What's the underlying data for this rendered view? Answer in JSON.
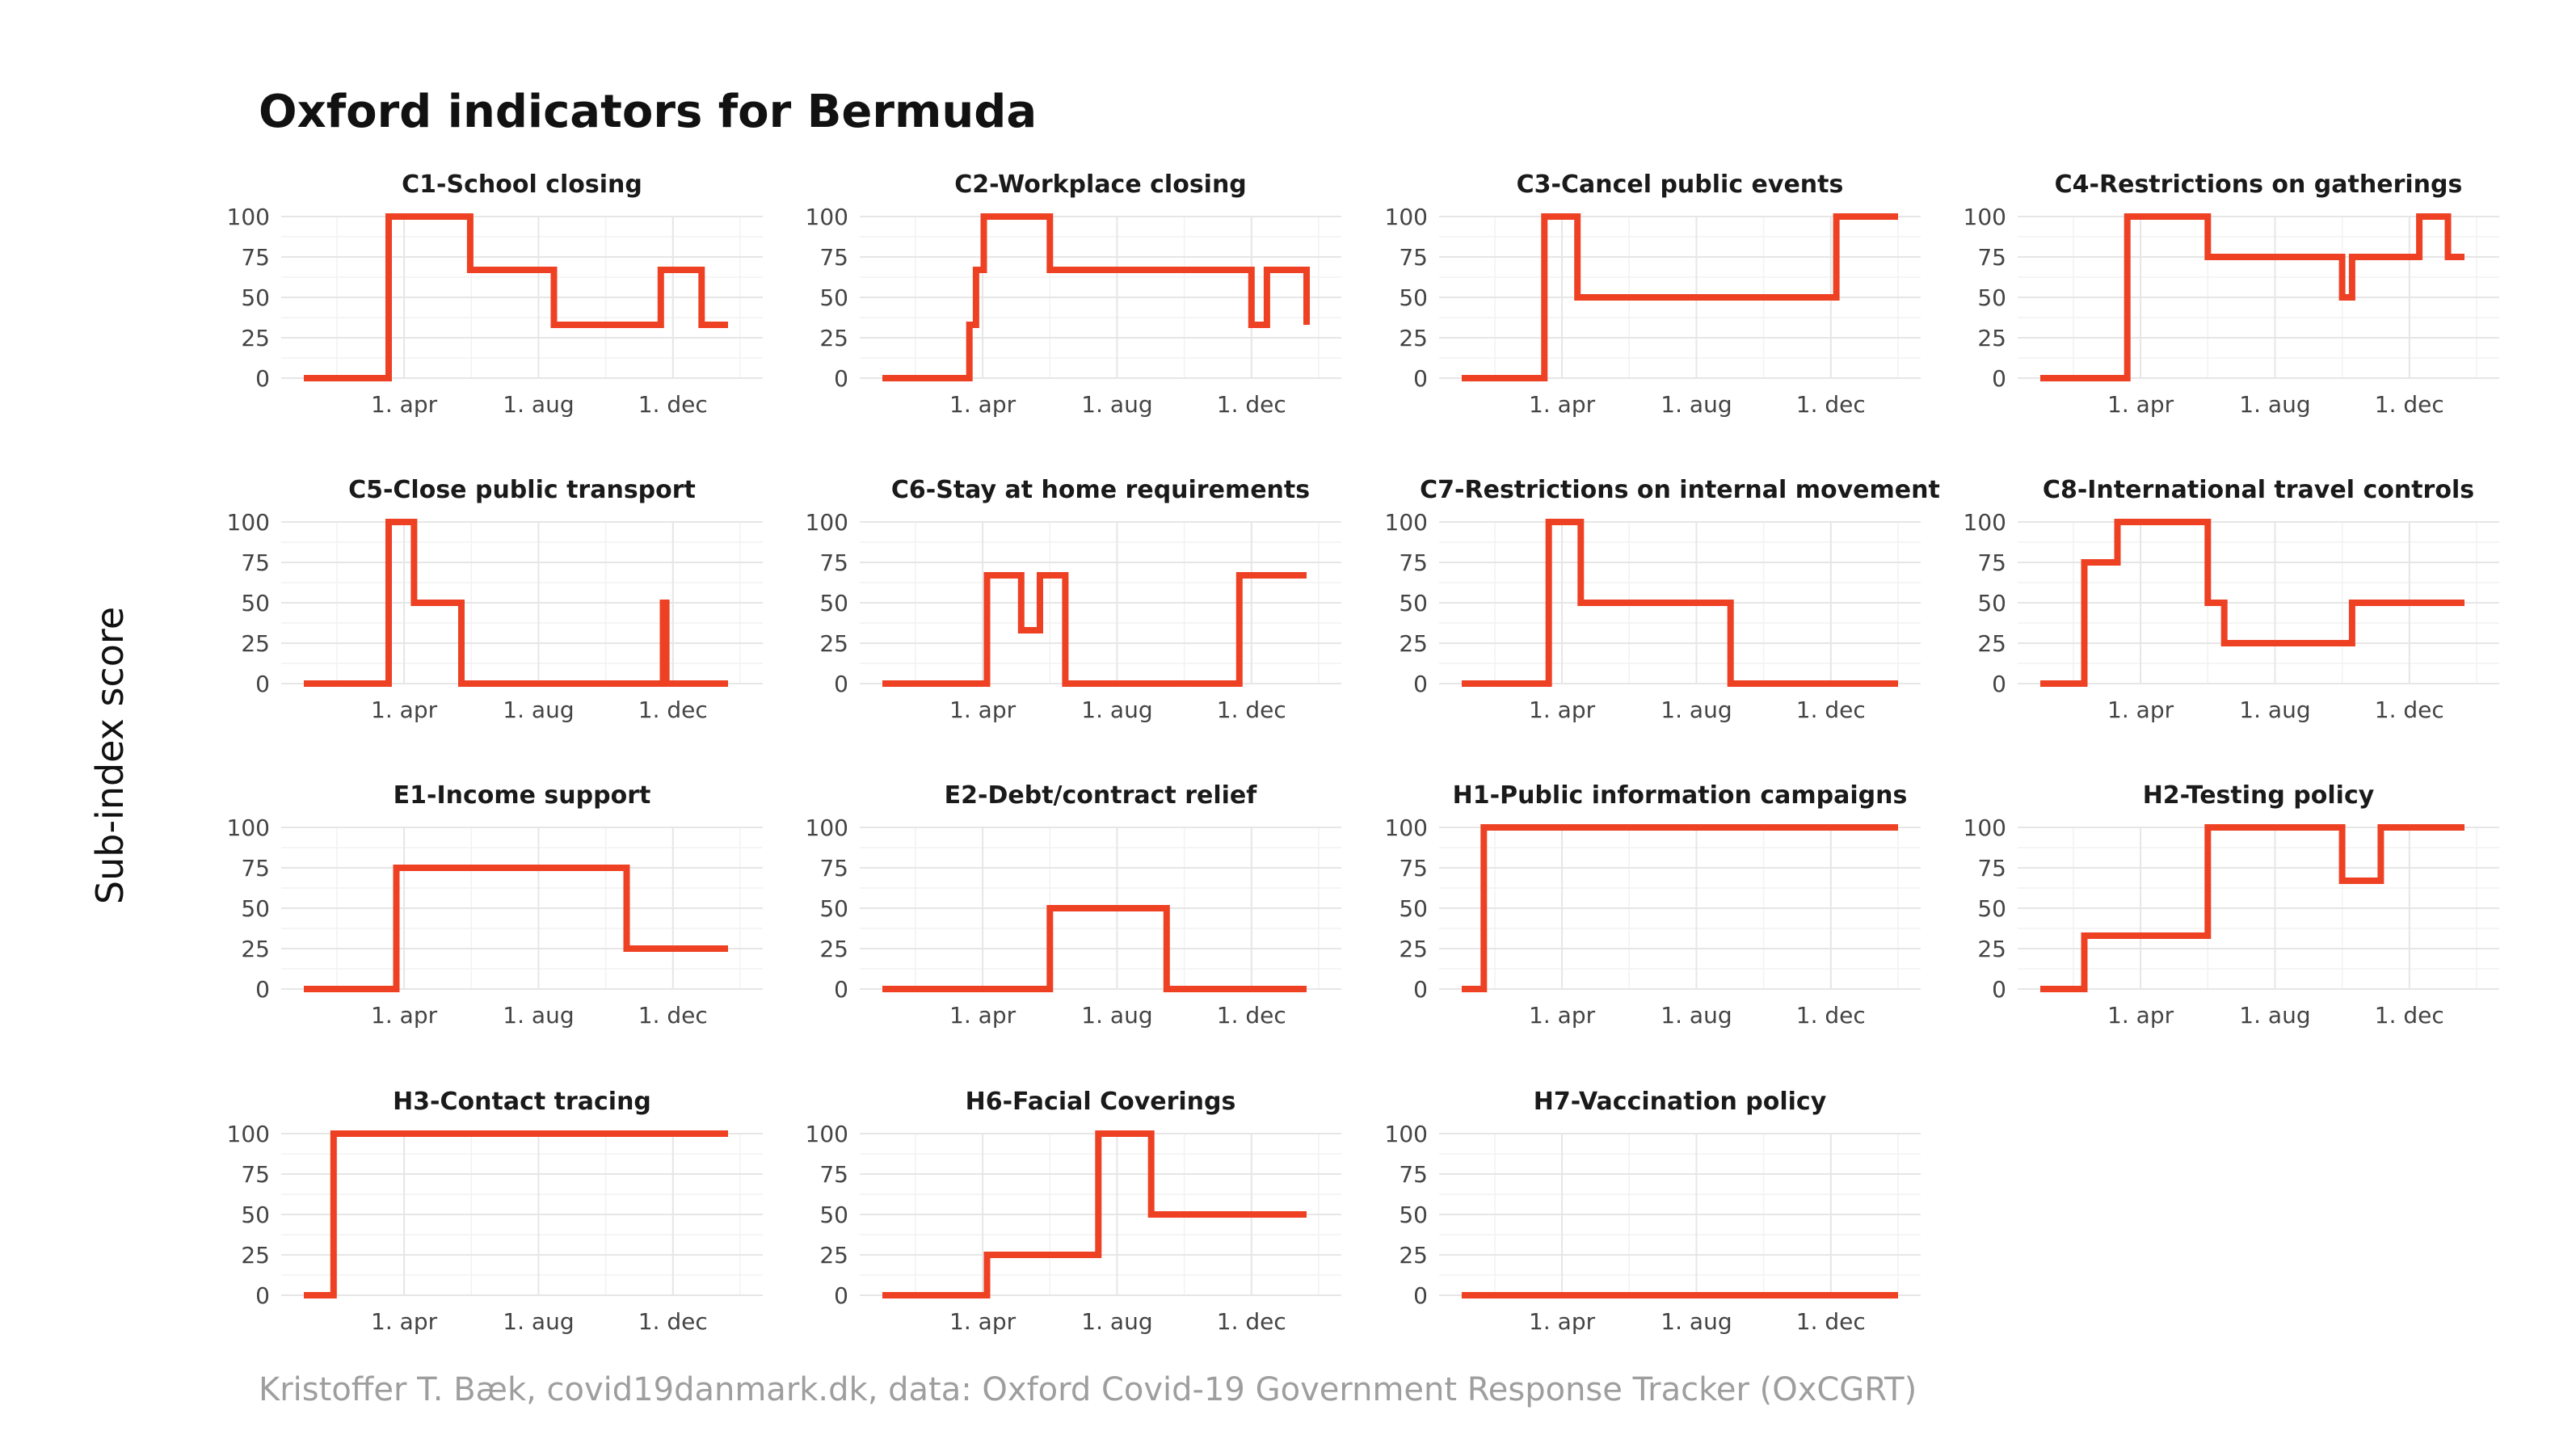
{
  "title": "Oxford indicators for Bermuda",
  "caption": "Kristoffer T. Bæk, covid19danmark.dk, data: Oxford Covid-19 Government Response Tracker (OxCGRT)",
  "ylabel": "Sub-index score",
  "colors": {
    "line": "#ee4023",
    "grid": "#e6e6e6"
  },
  "chart_data": {
    "type": "line",
    "step": true,
    "facets": 15,
    "x_range": [
      "2020-01-01",
      "2021-01-31"
    ],
    "ylim": [
      0,
      100
    ],
    "y_ticks": [
      0,
      25,
      50,
      75,
      100
    ],
    "x_ticks": [
      {
        "date": "2020-04-01",
        "label": "1. apr"
      },
      {
        "date": "2020-08-01",
        "label": "1. aug"
      },
      {
        "date": "2020-12-01",
        "label": "1. dec"
      }
    ],
    "panels": [
      {
        "name": "C1-School closing",
        "x": [
          "2020-01-01",
          "2020-03-18",
          "2020-05-31",
          "2020-08-15",
          "2020-11-20",
          "2020-12-27",
          "2021-01-20"
        ],
        "y": [
          0,
          100,
          67,
          33,
          67,
          33,
          33
        ]
      },
      {
        "name": "C2-Workplace closing",
        "x": [
          "2020-01-01",
          "2020-03-20",
          "2020-03-22",
          "2020-03-26",
          "2020-04-02",
          "2020-05-01",
          "2020-06-01",
          "2020-12-01",
          "2020-12-15",
          "2021-01-20"
        ],
        "y": [
          0,
          33,
          33,
          67,
          100,
          100,
          67,
          33,
          67,
          33
        ]
      },
      {
        "name": "C3-Cancel public events",
        "x": [
          "2020-01-01",
          "2020-03-16",
          "2020-04-15",
          "2020-12-06",
          "2021-01-31"
        ],
        "y": [
          0,
          100,
          50,
          100,
          100
        ]
      },
      {
        "name": "C4-Restrictions on gatherings",
        "x": [
          "2020-01-01",
          "2020-03-20",
          "2020-06-01",
          "2020-10-01",
          "2020-10-10",
          "2020-12-10",
          "2021-01-05",
          "2021-01-20"
        ],
        "y": [
          0,
          100,
          75,
          50,
          75,
          100,
          75,
          75
        ]
      },
      {
        "name": "C5-Close public transport",
        "x": [
          "2020-01-01",
          "2020-03-18",
          "2020-04-10",
          "2020-05-23",
          "2020-11-22",
          "2020-11-25",
          "2020-11-30",
          "2021-01-20"
        ],
        "y": [
          0,
          100,
          50,
          0,
          50,
          0,
          0,
          0
        ]
      },
      {
        "name": "C6-Stay at home requirements",
        "x": [
          "2020-01-01",
          "2020-04-05",
          "2020-05-06",
          "2020-05-23",
          "2020-06-15",
          "2020-11-20",
          "2021-01-20"
        ],
        "y": [
          0,
          67,
          33,
          67,
          0,
          67,
          67
        ]
      },
      {
        "name": "C7-Restrictions on internal movement",
        "x": [
          "2020-01-01",
          "2020-03-20",
          "2020-04-18",
          "2020-09-01",
          "2021-01-31"
        ],
        "y": [
          0,
          100,
          50,
          0,
          0
        ]
      },
      {
        "name": "C8-International travel controls",
        "x": [
          "2020-01-01",
          "2020-02-10",
          "2020-03-11",
          "2020-06-01",
          "2020-06-16",
          "2020-10-10",
          "2021-01-20"
        ],
        "y": [
          0,
          75,
          100,
          50,
          25,
          50,
          50
        ]
      },
      {
        "name": "E1-Income support",
        "x": [
          "2020-01-01",
          "2020-03-25",
          "2020-10-20",
          "2021-01-20"
        ],
        "y": [
          0,
          75,
          25,
          25
        ]
      },
      {
        "name": "E2-Debt/contract relief",
        "x": [
          "2020-01-01",
          "2020-06-01",
          "2020-09-15",
          "2021-01-20"
        ],
        "y": [
          0,
          50,
          0,
          0
        ]
      },
      {
        "name": "H1-Public information campaigns",
        "x": [
          "2020-01-01",
          "2020-01-21",
          "2021-01-31"
        ],
        "y": [
          0,
          100,
          100
        ]
      },
      {
        "name": "H2-Testing policy",
        "x": [
          "2020-01-01",
          "2020-02-10",
          "2020-06-01",
          "2020-10-01",
          "2020-11-05",
          "2021-01-20"
        ],
        "y": [
          0,
          33,
          100,
          67,
          100,
          100
        ]
      },
      {
        "name": "H3-Contact tracing",
        "x": [
          "2020-01-01",
          "2020-01-28",
          "2021-01-20"
        ],
        "y": [
          0,
          100,
          100
        ]
      },
      {
        "name": "H6-Facial Coverings",
        "x": [
          "2020-01-01",
          "2020-04-05",
          "2020-07-15",
          "2020-09-01",
          "2021-01-20"
        ],
        "y": [
          0,
          25,
          100,
          50,
          50
        ]
      },
      {
        "name": "H7-Vaccination policy",
        "x": [
          "2020-01-01",
          "2021-01-31"
        ],
        "y": [
          0,
          0
        ]
      }
    ]
  }
}
